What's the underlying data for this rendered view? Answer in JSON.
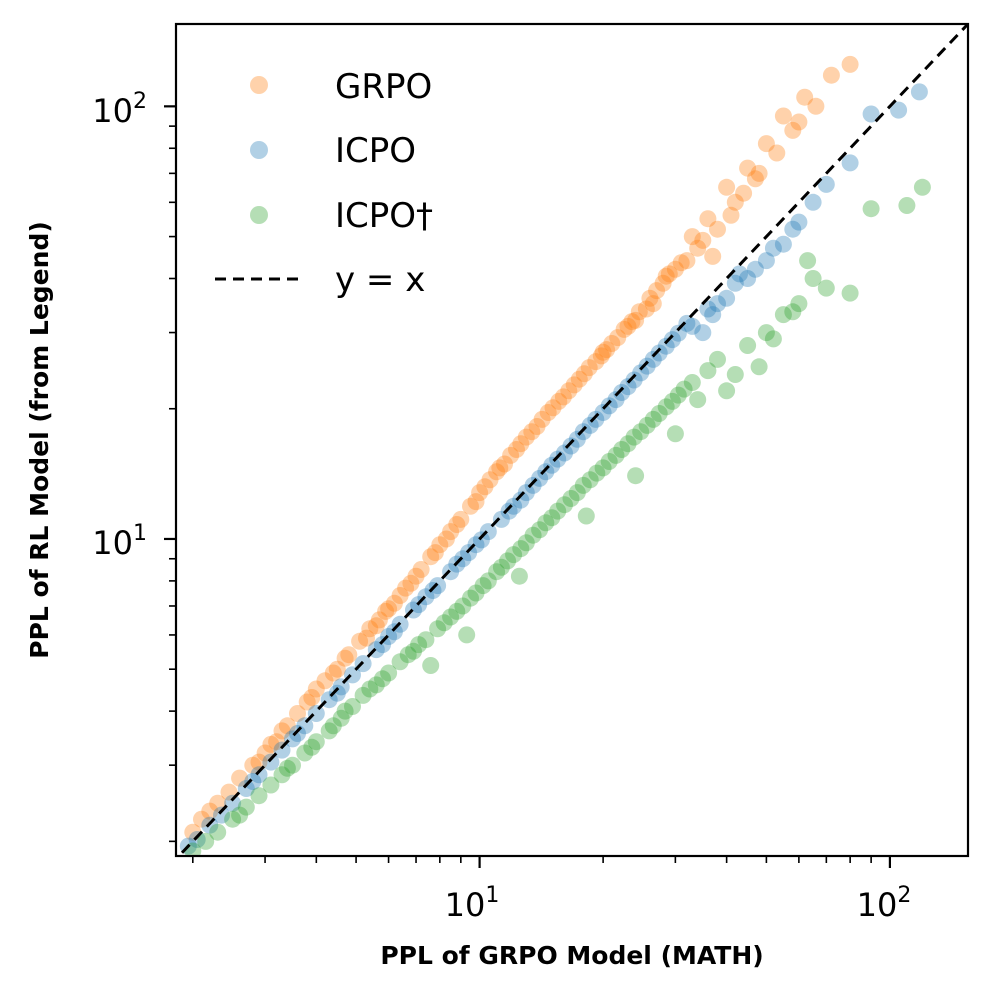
{
  "chart_data": {
    "type": "scatter",
    "xscale": "log",
    "yscale": "log",
    "xlim": [
      1.82,
      155
    ],
    "ylim": [
      1.85,
      155
    ],
    "xlabel": "PPL of GRPO Model (MATH)",
    "ylabel": "PPL of RL Model (from Legend)",
    "xticks": [
      {
        "base": "10",
        "exp": "1",
        "value": 10
      },
      {
        "base": "10",
        "exp": "2",
        "value": 100
      }
    ],
    "yticks": [
      {
        "base": "10",
        "exp": "1",
        "value": 10
      },
      {
        "base": "10",
        "exp": "2",
        "value": 100
      }
    ],
    "legend_position": "upper-left",
    "series": [
      {
        "name": "GRPO",
        "color": "#ff7f0e",
        "opacity": 0.35,
        "points": [
          [
            2.0,
            2.1
          ],
          [
            2.1,
            2.25
          ],
          [
            2.3,
            2.45
          ],
          [
            2.45,
            2.6
          ],
          [
            2.6,
            2.8
          ],
          [
            2.8,
            3.0
          ],
          [
            3.0,
            3.2
          ],
          [
            3.2,
            3.4
          ],
          [
            3.4,
            3.7
          ],
          [
            3.6,
            3.95
          ],
          [
            3.8,
            4.2
          ],
          [
            4.0,
            4.5
          ],
          [
            4.2,
            4.7
          ],
          [
            4.5,
            5.0
          ],
          [
            4.8,
            5.4
          ],
          [
            5.1,
            5.8
          ],
          [
            5.4,
            6.2
          ],
          [
            5.7,
            6.5
          ],
          [
            6.0,
            6.9
          ],
          [
            6.4,
            7.4
          ],
          [
            6.8,
            7.9
          ],
          [
            7.2,
            8.5
          ],
          [
            7.6,
            9.1
          ],
          [
            8.0,
            9.7
          ],
          [
            8.5,
            10.4
          ],
          [
            9.0,
            11.1
          ],
          [
            9.5,
            11.9
          ],
          [
            10.0,
            12.8
          ],
          [
            10.6,
            13.7
          ],
          [
            11.2,
            14.6
          ],
          [
            11.9,
            15.6
          ],
          [
            12.6,
            16.6
          ],
          [
            13.4,
            17.7
          ],
          [
            14.2,
            18.9
          ],
          [
            15.1,
            20.1
          ],
          [
            16.0,
            21.3
          ],
          [
            17.0,
            22.7
          ],
          [
            18.0,
            24.1
          ],
          [
            19.2,
            25.7
          ],
          [
            20.4,
            27.4
          ],
          [
            21.7,
            29.2
          ],
          [
            23.0,
            31.0
          ],
          [
            24.5,
            33.5
          ],
          [
            26.0,
            36.0
          ],
          [
            28.0,
            39.0
          ],
          [
            30.0,
            42.0
          ],
          [
            33.0,
            50.0
          ],
          [
            36.0,
            55.0
          ],
          [
            40.0,
            65.0
          ],
          [
            45.0,
            72.0
          ],
          [
            50.0,
            82.0
          ],
          [
            55.0,
            95.0
          ],
          [
            62.0,
            105.0
          ],
          [
            72.0,
            118.0
          ],
          [
            80.0,
            125.0
          ],
          [
            2.2,
            2.35
          ],
          [
            2.9,
            3.05
          ],
          [
            3.3,
            3.6
          ],
          [
            4.4,
            4.9
          ],
          [
            5.3,
            5.9
          ],
          [
            6.2,
            7.1
          ],
          [
            7.0,
            8.2
          ],
          [
            8.3,
            10.0
          ],
          [
            9.8,
            12.2
          ],
          [
            11.5,
            14.9
          ],
          [
            13.8,
            18.2
          ],
          [
            16.5,
            22.0
          ],
          [
            19.8,
            26.5
          ],
          [
            22.5,
            30.5
          ],
          [
            25.5,
            34.0
          ],
          [
            27.0,
            37.5
          ],
          [
            32.0,
            44.0
          ],
          [
            34.0,
            47.0
          ],
          [
            38.0,
            52.0
          ],
          [
            42.0,
            60.0
          ],
          [
            47.0,
            68.0
          ],
          [
            58.0,
            88.0
          ],
          [
            66.0,
            100.0
          ],
          [
            4.7,
            5.3
          ],
          [
            5.9,
            6.8
          ],
          [
            7.8,
            9.3
          ],
          [
            10.3,
            13.2
          ],
          [
            12.3,
            16.1
          ],
          [
            14.7,
            19.6
          ],
          [
            17.5,
            23.4
          ],
          [
            21.0,
            28.3
          ],
          [
            24.0,
            32.0
          ],
          [
            29.0,
            41.0
          ],
          [
            31.0,
            43.5
          ],
          [
            35.0,
            49.0
          ],
          [
            37.0,
            45.0
          ],
          [
            41.0,
            56.0
          ],
          [
            44.0,
            63.0
          ],
          [
            48.0,
            70.0
          ],
          [
            53.0,
            78.0
          ],
          [
            60.0,
            92.0
          ],
          [
            3.1,
            3.35
          ],
          [
            3.9,
            4.3
          ],
          [
            5.6,
            6.3
          ],
          [
            6.6,
            7.7
          ],
          [
            8.8,
            10.8
          ],
          [
            11.0,
            14.3
          ],
          [
            13.0,
            17.2
          ],
          [
            15.6,
            20.8
          ],
          [
            18.5,
            24.9
          ],
          [
            20.0,
            27.0
          ],
          [
            23.5,
            31.8
          ],
          [
            26.5,
            35.0
          ],
          [
            28.5,
            40.5
          ]
        ]
      },
      {
        "name": "ICPO",
        "color": "#1f77b4",
        "opacity": 0.35,
        "points": [
          [
            1.95,
            1.95
          ],
          [
            2.05,
            2.02
          ],
          [
            2.2,
            2.18
          ],
          [
            2.35,
            2.3
          ],
          [
            2.5,
            2.45
          ],
          [
            2.7,
            2.65
          ],
          [
            2.9,
            2.85
          ],
          [
            3.1,
            3.05
          ],
          [
            3.3,
            3.25
          ],
          [
            3.5,
            3.45
          ],
          [
            3.75,
            3.7
          ],
          [
            4.0,
            3.95
          ],
          [
            4.3,
            4.25
          ],
          [
            4.6,
            4.55
          ],
          [
            4.9,
            4.85
          ],
          [
            5.2,
            5.15
          ],
          [
            5.6,
            5.55
          ],
          [
            6.0,
            5.95
          ],
          [
            6.4,
            6.35
          ],
          [
            6.9,
            6.85
          ],
          [
            7.4,
            7.35
          ],
          [
            7.9,
            7.8
          ],
          [
            8.5,
            8.4
          ],
          [
            9.1,
            9.0
          ],
          [
            9.8,
            9.7
          ],
          [
            10.5,
            10.4
          ],
          [
            11.3,
            11.1
          ],
          [
            12.1,
            11.9
          ],
          [
            13.0,
            12.8
          ],
          [
            14.0,
            13.8
          ],
          [
            15.0,
            14.8
          ],
          [
            16.1,
            15.8
          ],
          [
            17.3,
            17.0
          ],
          [
            18.6,
            18.3
          ],
          [
            20.0,
            19.6
          ],
          [
            21.5,
            21.0
          ],
          [
            23.0,
            22.5
          ],
          [
            24.7,
            24.2
          ],
          [
            26.5,
            26.0
          ],
          [
            28.5,
            27.9
          ],
          [
            30.5,
            29.9
          ],
          [
            33.0,
            31.0
          ],
          [
            36.0,
            34.0
          ],
          [
            40.0,
            36.0
          ],
          [
            45.0,
            40.0
          ],
          [
            50.0,
            44.0
          ],
          [
            55.0,
            48.0
          ],
          [
            60.0,
            54.0
          ],
          [
            70.0,
            66.0
          ],
          [
            80.0,
            74.0
          ],
          [
            90.0,
            96.0
          ],
          [
            105.0,
            98.0
          ],
          [
            118.0,
            108.0
          ],
          [
            2.8,
            2.75
          ],
          [
            3.6,
            3.55
          ],
          [
            4.5,
            4.4
          ],
          [
            5.8,
            5.7
          ],
          [
            7.1,
            7.05
          ],
          [
            8.8,
            8.75
          ],
          [
            10.1,
            9.95
          ],
          [
            11.8,
            11.6
          ],
          [
            13.5,
            13.3
          ],
          [
            15.5,
            15.3
          ],
          [
            17.9,
            17.7
          ],
          [
            20.7,
            20.3
          ],
          [
            23.8,
            23.3
          ],
          [
            27.4,
            26.9
          ],
          [
            32.0,
            31.5
          ],
          [
            35.0,
            30.0
          ],
          [
            38.0,
            35.0
          ],
          [
            42.0,
            39.0
          ],
          [
            47.0,
            42.0
          ],
          [
            52.0,
            47.0
          ],
          [
            65.0,
            60.0
          ],
          [
            6.2,
            6.1
          ],
          [
            7.7,
            7.6
          ],
          [
            9.4,
            9.3
          ],
          [
            12.6,
            12.3
          ],
          [
            14.5,
            14.3
          ],
          [
            16.7,
            16.4
          ],
          [
            19.2,
            18.9
          ],
          [
            22.2,
            21.8
          ],
          [
            25.6,
            25.1
          ],
          [
            29.5,
            28.9
          ],
          [
            37.0,
            33.0
          ],
          [
            43.0,
            41.0
          ],
          [
            58.0,
            52.0
          ]
        ]
      },
      {
        "name": "ICPO†",
        "color": "#2ca02c",
        "opacity": 0.35,
        "points": [
          [
            2.0,
            1.9
          ],
          [
            2.15,
            2.0
          ],
          [
            2.3,
            2.1
          ],
          [
            2.5,
            2.25
          ],
          [
            2.7,
            2.4
          ],
          [
            2.9,
            2.55
          ],
          [
            3.1,
            2.7
          ],
          [
            3.3,
            2.85
          ],
          [
            3.5,
            3.0
          ],
          [
            3.75,
            3.2
          ],
          [
            4.0,
            3.4
          ],
          [
            4.3,
            3.6
          ],
          [
            4.6,
            3.85
          ],
          [
            4.9,
            4.1
          ],
          [
            5.2,
            4.35
          ],
          [
            5.6,
            4.6
          ],
          [
            6.0,
            4.9
          ],
          [
            6.4,
            5.2
          ],
          [
            6.9,
            5.5
          ],
          [
            7.4,
            5.85
          ],
          [
            7.9,
            6.2
          ],
          [
            8.5,
            6.6
          ],
          [
            9.1,
            7.0
          ],
          [
            9.8,
            7.5
          ],
          [
            10.5,
            8.0
          ],
          [
            11.3,
            8.6
          ],
          [
            12.1,
            9.2
          ],
          [
            13.0,
            9.8
          ],
          [
            14.0,
            10.5
          ],
          [
            15.0,
            11.2
          ],
          [
            16.1,
            12.0
          ],
          [
            17.3,
            12.8
          ],
          [
            18.6,
            13.7
          ],
          [
            20.0,
            14.6
          ],
          [
            21.5,
            15.6
          ],
          [
            23.0,
            16.6
          ],
          [
            24.7,
            17.7
          ],
          [
            26.5,
            18.9
          ],
          [
            28.5,
            20.2
          ],
          [
            30.5,
            21.5
          ],
          [
            33.0,
            23.0
          ],
          [
            36.0,
            24.5
          ],
          [
            40.0,
            22.0
          ],
          [
            45.0,
            28.0
          ],
          [
            50.0,
            30.0
          ],
          [
            55.0,
            33.0
          ],
          [
            60.0,
            35.0
          ],
          [
            65.0,
            40.0
          ],
          [
            70.0,
            38.0
          ],
          [
            80.0,
            37.0
          ],
          [
            90.0,
            58.0
          ],
          [
            110.0,
            59.0
          ],
          [
            120.0,
            65.0
          ],
          [
            2.6,
            2.3
          ],
          [
            3.4,
            2.95
          ],
          [
            4.4,
            3.7
          ],
          [
            5.4,
            4.5
          ],
          [
            6.7,
            5.4
          ],
          [
            8.2,
            6.4
          ],
          [
            9.5,
            7.3
          ],
          [
            11.0,
            8.4
          ],
          [
            12.6,
            9.5
          ],
          [
            14.5,
            10.9
          ],
          [
            16.7,
            12.4
          ],
          [
            19.3,
            14.2
          ],
          [
            22.2,
            16.1
          ],
          [
            25.6,
            18.3
          ],
          [
            29.5,
            20.8
          ],
          [
            34.0,
            21.0
          ],
          [
            38.0,
            26.0
          ],
          [
            42.0,
            24.0
          ],
          [
            48.0,
            25.0
          ],
          [
            52.0,
            29.0
          ],
          [
            58.0,
            33.5
          ],
          [
            63.0,
            44.0
          ],
          [
            3.9,
            3.3
          ],
          [
            4.7,
            4.0
          ],
          [
            5.8,
            4.75
          ],
          [
            7.1,
            5.7
          ],
          [
            8.8,
            6.8
          ],
          [
            10.2,
            7.8
          ],
          [
            11.7,
            8.9
          ],
          [
            13.5,
            10.2
          ],
          [
            15.5,
            11.6
          ],
          [
            17.9,
            13.3
          ],
          [
            20.7,
            15.1
          ],
          [
            23.8,
            17.2
          ],
          [
            27.4,
            19.5
          ],
          [
            31.5,
            22.2
          ],
          [
            7.6,
            5.1
          ],
          [
            9.3,
            6.0
          ],
          [
            12.5,
            8.2
          ],
          [
            18.2,
            11.3
          ],
          [
            24.0,
            14.0
          ],
          [
            30.0,
            17.5
          ]
        ]
      }
    ],
    "reference_line": {
      "name": "y = x",
      "color": "#000000",
      "style": "dashed"
    }
  }
}
